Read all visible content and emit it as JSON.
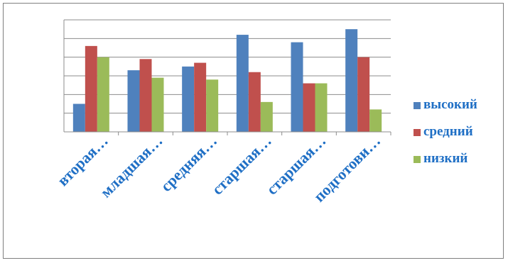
{
  "chart_data": {
    "type": "bar",
    "categories": [
      "вторая…",
      "младшая…",
      "средняя…",
      "старшая…",
      "старшая…",
      "подготови…"
    ],
    "series": [
      {
        "name": "высокий",
        "color": "#4F81BD",
        "values": [
          15,
          33,
          35,
          52,
          48,
          55
        ]
      },
      {
        "name": "средний",
        "color": "#C0504D",
        "values": [
          46,
          39,
          37,
          32,
          26,
          40
        ]
      },
      {
        "name": "низкий",
        "color": "#9BBB59",
        "values": [
          40,
          29,
          28,
          16,
          26,
          12
        ]
      }
    ],
    "ylim": [
      0,
      60
    ],
    "grid": true,
    "legend_position": "right",
    "label_color": "#1F6FC5"
  }
}
